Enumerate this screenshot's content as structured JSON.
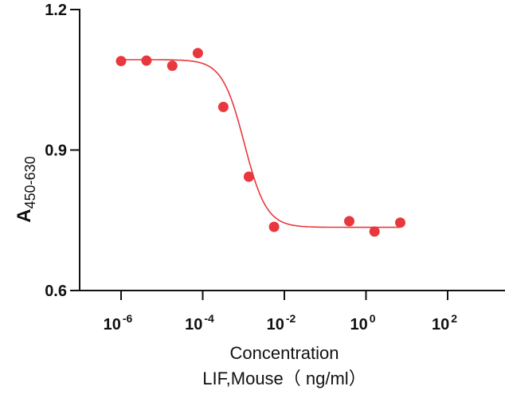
{
  "chart_data": {
    "type": "scatter",
    "title": "",
    "xscale": "log10",
    "xlabel_lines": [
      "Concentration",
      "LIF,Mouse（ ng/ml）"
    ],
    "ylabel_main": "A",
    "ylabel_sub": "450-630",
    "ylim": [
      0.6,
      1.2
    ],
    "xlim_log10": [
      -7,
      3
    ],
    "yticks": [
      {
        "value": 0.6,
        "label": "0.6"
      },
      {
        "value": 0.9,
        "label": "0.9"
      },
      {
        "value": 1.2,
        "label": "1.2"
      }
    ],
    "xticks": [
      {
        "log10": -6,
        "base": "10",
        "exp": "-6"
      },
      {
        "log10": -4,
        "base": "10",
        "exp": "-4"
      },
      {
        "log10": -2,
        "base": "10",
        "exp": "-2"
      },
      {
        "log10": 0,
        "base": "10",
        "exp": "0"
      },
      {
        "log10": 2,
        "base": "10",
        "exp": "2"
      }
    ],
    "color": "#e8383d",
    "points": [
      {
        "x": 1e-06,
        "y": 1.09
      },
      {
        "x": 4.2e-06,
        "y": 1.091
      },
      {
        "x": 1.8e-05,
        "y": 1.08
      },
      {
        "x": 7.6e-05,
        "y": 1.107
      },
      {
        "x": 0.00032,
        "y": 0.992
      },
      {
        "x": 0.00135,
        "y": 0.843
      },
      {
        "x": 0.0056,
        "y": 0.736
      },
      {
        "x": 0.39,
        "y": 0.748
      },
      {
        "x": 1.62,
        "y": 0.726
      },
      {
        "x": 6.9,
        "y": 0.745
      }
    ],
    "fit": {
      "model": "4PL",
      "top": 1.093,
      "bottom": 0.735,
      "log_ec50": -2.98,
      "hill_slope": -1.6
    },
    "grid": false,
    "legend": "none"
  }
}
